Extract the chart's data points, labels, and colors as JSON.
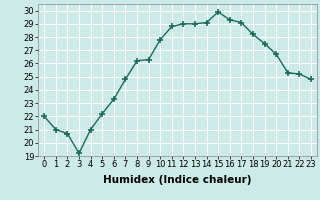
{
  "x": [
    0,
    1,
    2,
    3,
    4,
    5,
    6,
    7,
    8,
    9,
    10,
    11,
    12,
    13,
    14,
    15,
    16,
    17,
    18,
    19,
    20,
    21,
    22,
    23
  ],
  "y": [
    22,
    21,
    20.7,
    19.2,
    21,
    22.2,
    23.3,
    24.8,
    26.2,
    26.3,
    27.8,
    28.8,
    29.0,
    29.0,
    29.1,
    29.9,
    29.3,
    29.1,
    28.2,
    27.5,
    26.7,
    25.3,
    25.2,
    24.8
  ],
  "line_color": "#1a6b5a",
  "marker": "+",
  "markersize": 4,
  "linewidth": 1.0,
  "bg_color": "#cceae7",
  "grid_color": "#ffffff",
  "grid_minor_color": "#e8d8d8",
  "xlabel": "Humidex (Indice chaleur)",
  "ylim": [
    19,
    30.5
  ],
  "xlim": [
    -0.5,
    23.5
  ],
  "yticks": [
    19,
    20,
    21,
    22,
    23,
    24,
    25,
    26,
    27,
    28,
    29,
    30
  ],
  "xticks": [
    0,
    1,
    2,
    3,
    4,
    5,
    6,
    7,
    8,
    9,
    10,
    11,
    12,
    13,
    14,
    15,
    16,
    17,
    18,
    19,
    20,
    21,
    22,
    23
  ],
  "tick_fontsize": 6,
  "xlabel_fontsize": 7.5,
  "xlabel_fontweight": "bold"
}
